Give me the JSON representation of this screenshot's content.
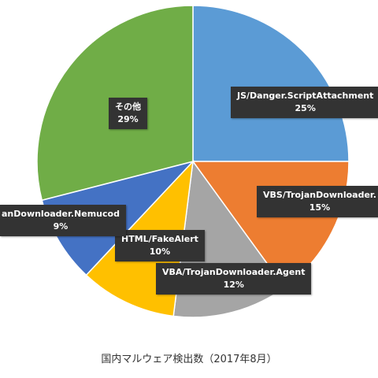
{
  "caption": "国内マルウェア検出数（2017年8月）",
  "chart_data": {
    "type": "pie",
    "title": "",
    "start_angle_deg": 0,
    "direction": "clockwise",
    "legend": "none",
    "slices": [
      {
        "name": "JS/Danger.ScriptAttachment",
        "value": 25,
        "label": "25%",
        "color": "#5B9BD5"
      },
      {
        "name": "VBS/TrojanDownloader.",
        "value": 15,
        "label": "15%",
        "color": "#ED7D31"
      },
      {
        "name": "VBA/TrojanDownloader.Agent",
        "value": 12,
        "label": "12%",
        "color": "#A5A5A5"
      },
      {
        "name": "HTML/FakeAlert",
        "value": 10,
        "label": "10%",
        "color": "#FFC000"
      },
      {
        "name": "anDownloader.Nemucod",
        "value": 9,
        "label": "9%",
        "color": "#4472C4"
      },
      {
        "name": "その他",
        "value": 29,
        "label": "29%",
        "color": "#70AD47"
      }
    ]
  }
}
